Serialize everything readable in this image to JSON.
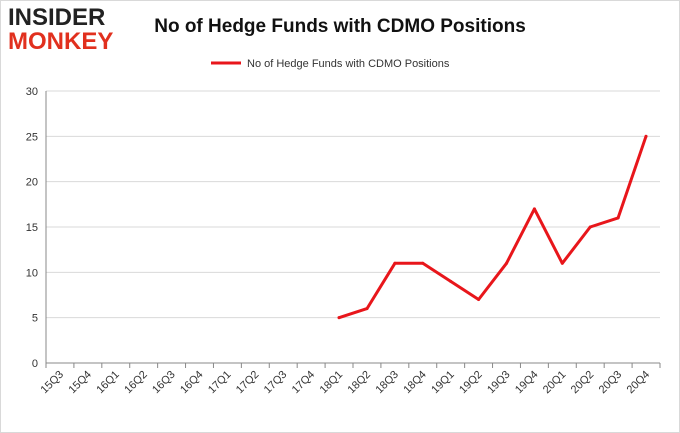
{
  "logo": {
    "line1": "INSIDER",
    "line2": "MONKEY"
  },
  "colors": {
    "series": "#e8161b",
    "grid": "#d9d9d9",
    "axis": "#888888",
    "text": "#333333"
  },
  "chart_data": {
    "type": "line",
    "title": "No of Hedge Funds with CDMO Positions",
    "categories": [
      "15Q3",
      "15Q4",
      "16Q1",
      "16Q2",
      "16Q3",
      "16Q4",
      "17Q1",
      "17Q2",
      "17Q3",
      "17Q4",
      "18Q1",
      "18Q2",
      "18Q3",
      "18Q4",
      "19Q1",
      "19Q2",
      "19Q3",
      "19Q4",
      "20Q1",
      "20Q2",
      "20Q3",
      "20Q4"
    ],
    "series": [
      {
        "name": "No of Hedge Funds with CDMO  Positions",
        "values": [
          null,
          null,
          null,
          null,
          null,
          null,
          null,
          null,
          null,
          null,
          5,
          6,
          11,
          11,
          9,
          7,
          11,
          17,
          11,
          15,
          16,
          25
        ]
      }
    ],
    "yticks": [
      "0",
      "5",
      "10",
      "15",
      "20",
      "25",
      "30"
    ],
    "ylim": [
      0,
      30
    ],
    "grid": true,
    "legend_position": "top-center"
  }
}
